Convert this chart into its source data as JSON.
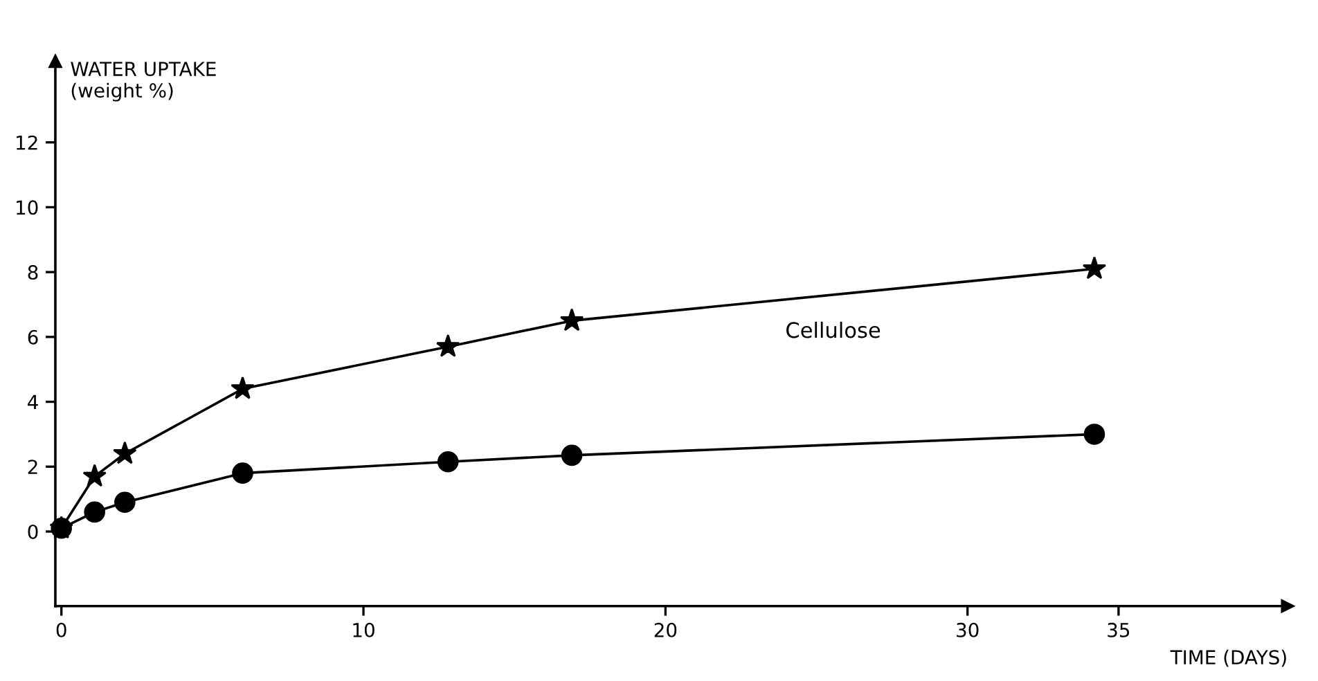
{
  "chart_data": {
    "type": "line",
    "xlabel": "TIME (DAYS)",
    "ylabel": "WATER UPTAKE\n(weight %)",
    "xlim": [
      -0.2,
      40.6
    ],
    "ylim": [
      -2.3,
      14.5
    ],
    "xticks": [
      0,
      10,
      20,
      30,
      35
    ],
    "yticks": [
      0,
      2,
      4,
      6,
      8,
      10,
      12
    ],
    "grid": false,
    "legend": false,
    "line_style": "solid",
    "series": [
      {
        "name": "Cellulose",
        "color": "#000000",
        "marker": "star",
        "x": [
          0,
          1.1,
          2.1,
          6.0,
          12.8,
          16.9,
          34.2
        ],
        "values": [
          0.1,
          1.7,
          2.4,
          4.4,
          5.7,
          6.5,
          8.1
        ]
      },
      {
        "color": "#000000",
        "marker": "circle",
        "x": [
          0,
          1.1,
          2.1,
          6.0,
          12.8,
          16.9,
          34.2
        ],
        "values": [
          0.1,
          0.6,
          0.9,
          1.8,
          2.15,
          2.35,
          3.0
        ]
      }
    ]
  }
}
